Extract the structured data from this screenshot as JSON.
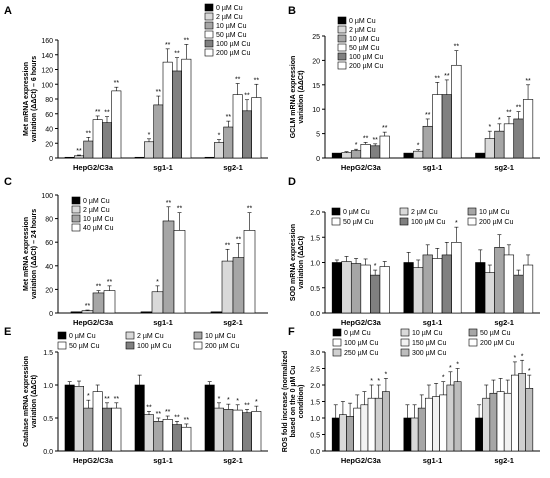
{
  "figure": {
    "panels_order": [
      "A",
      "B",
      "C",
      "D",
      "E",
      "F"
    ]
  },
  "series_colors": {
    "0": "#000000",
    "2": "#d9d9d9",
    "10": "#a6a6a6",
    "50": "#ffffff",
    "100": "#808080",
    "150": "#f2f2f2",
    "200": "#ffffff",
    "250": "#d0d0d0",
    "300": "#bdbdbd",
    "40": "#ffffff"
  },
  "chart_data": [
    {
      "panel": "A",
      "type": "bar",
      "ylabel_lines": [
        "Met mRNA expression",
        "variation (ΔΔCt) – 6 hours"
      ],
      "ylim": [
        0,
        160
      ],
      "yticks": [
        0,
        20,
        40,
        60,
        80,
        100,
        120,
        140,
        160
      ],
      "ytick_decimals": 0,
      "categories": [
        "HepG2/C3a",
        "sg1-1",
        "sg2-1"
      ],
      "legend_layout": "column",
      "series": [
        {
          "name": "0 µM Cu",
          "color": "#000000",
          "values": [
            1,
            1,
            1
          ],
          "errors": [
            0,
            0,
            0
          ],
          "stars": [
            "",
            "",
            ""
          ]
        },
        {
          "name": "2 µM Cu",
          "color": "#d9d9d9",
          "values": [
            3,
            22,
            21
          ],
          "errors": [
            1,
            4,
            4
          ],
          "stars": [
            "**",
            "*",
            "*"
          ]
        },
        {
          "name": "10 µM Cu",
          "color": "#a6a6a6",
          "values": [
            23,
            72,
            42
          ],
          "errors": [
            5,
            12,
            8
          ],
          "stars": [
            "**",
            "**",
            "**"
          ]
        },
        {
          "name": "50 µM Cu",
          "color": "#ffffff",
          "values": [
            52,
            130,
            86
          ],
          "errors": [
            5,
            18,
            15
          ],
          "stars": [
            "**",
            "**",
            "**"
          ]
        },
        {
          "name": "100 µM Cu",
          "color": "#808080",
          "values": [
            48,
            118,
            64
          ],
          "errors": [
            8,
            18,
            15
          ],
          "stars": [
            "**",
            "**",
            "**"
          ]
        },
        {
          "name": "200 µM Cu",
          "color": "#ffffff",
          "values": [
            91,
            134,
            82
          ],
          "errors": [
            5,
            20,
            18
          ],
          "stars": [
            "**",
            "**",
            "**"
          ]
        }
      ]
    },
    {
      "panel": "B",
      "type": "bar",
      "ylabel_lines": [
        "GCLM mRNA expression",
        "variation (ΔΔCt)"
      ],
      "ylim": [
        0,
        25
      ],
      "yticks": [
        0,
        5,
        10,
        15,
        20,
        25
      ],
      "ytick_decimals": 0,
      "categories": [
        "HepG2/C3a",
        "sg1-1",
        "sg2-1"
      ],
      "legend_layout": "column",
      "series": [
        {
          "name": "0 µM Cu",
          "color": "#000000",
          "values": [
            1,
            1,
            1
          ],
          "errors": [
            0,
            0,
            0
          ],
          "stars": [
            "",
            "",
            ""
          ]
        },
        {
          "name": "2 µM Cu",
          "color": "#d9d9d9",
          "values": [
            1.1,
            1.4,
            4
          ],
          "errors": [
            0.2,
            0.3,
            1.5
          ],
          "stars": [
            "",
            "*",
            "*"
          ]
        },
        {
          "name": "10 µM Cu",
          "color": "#a6a6a6",
          "values": [
            1.5,
            6.5,
            5.5
          ],
          "errors": [
            0.3,
            1.5,
            1.5
          ],
          "stars": [
            "*",
            "**",
            "*"
          ]
        },
        {
          "name": "50 µM Cu",
          "color": "#ffffff",
          "values": [
            2.8,
            13,
            7
          ],
          "errors": [
            0.4,
            2.5,
            1.5
          ],
          "stars": [
            "**",
            "**",
            "**"
          ]
        },
        {
          "name": "100 µM Cu",
          "color": "#808080",
          "values": [
            2.5,
            13,
            8
          ],
          "errors": [
            0.4,
            3,
            1.5
          ],
          "stars": [
            "**",
            "**",
            "**"
          ]
        },
        {
          "name": "200 µM Cu",
          "color": "#ffffff",
          "values": [
            4.5,
            19,
            12
          ],
          "errors": [
            0.8,
            3,
            3
          ],
          "stars": [
            "**",
            "**",
            "**"
          ]
        }
      ]
    },
    {
      "panel": "C",
      "type": "bar",
      "ylabel_lines": [
        "Met mRNA expression",
        "variation (ΔΔCt) – 24 hours"
      ],
      "ylim": [
        0,
        100
      ],
      "yticks": [
        0,
        20,
        40,
        60,
        80,
        100
      ],
      "ytick_decimals": 0,
      "categories": [
        "HepG2/C3a",
        "sg1-1",
        "sg2-1"
      ],
      "legend_layout": "column",
      "series": [
        {
          "name": "0 µM Cu",
          "color": "#000000",
          "values": [
            1,
            1,
            1
          ],
          "errors": [
            0,
            0,
            0
          ],
          "stars": [
            "",
            "",
            ""
          ]
        },
        {
          "name": "2 µM Cu",
          "color": "#d9d9d9",
          "values": [
            2,
            18,
            44
          ],
          "errors": [
            0.5,
            5,
            10
          ],
          "stars": [
            "**",
            "*",
            "**"
          ]
        },
        {
          "name": "10 µM Cu",
          "color": "#a6a6a6",
          "values": [
            17,
            78,
            47
          ],
          "errors": [
            2,
            12,
            12
          ],
          "stars": [
            "**",
            "**",
            "**"
          ]
        },
        {
          "name": "40 µM Cu",
          "color": "#ffffff",
          "values": [
            19,
            70,
            70
          ],
          "errors": [
            4,
            15,
            15
          ],
          "stars": [
            "**",
            "**",
            "**"
          ]
        }
      ]
    },
    {
      "panel": "D",
      "type": "bar",
      "ylabel_lines": [
        "SOD mRNA expression",
        "variation (ΔΔCt)"
      ],
      "ylim": [
        0,
        2
      ],
      "yticks": [
        0,
        0.5,
        1,
        1.5,
        2
      ],
      "ytick_decimals": 1,
      "categories": [
        "HepG2/C3a",
        "sg1-1",
        "sg2-1"
      ],
      "legend_layout": "grid3",
      "series": [
        {
          "name": "0 µM Cu",
          "color": "#000000",
          "values": [
            1,
            1,
            1
          ],
          "errors": [
            0.05,
            0.2,
            0.25
          ],
          "stars": [
            "",
            "",
            ""
          ]
        },
        {
          "name": "2 µM Cu",
          "color": "#d9d9d9",
          "values": [
            1.02,
            0.9,
            0.8
          ],
          "errors": [
            0.1,
            0.15,
            0.15
          ],
          "stars": [
            "",
            "",
            ""
          ]
        },
        {
          "name": "10 µM Cu",
          "color": "#a6a6a6",
          "values": [
            0.98,
            1.15,
            1.3
          ],
          "errors": [
            0.1,
            0.2,
            0.25
          ],
          "stars": [
            "",
            "",
            ""
          ]
        },
        {
          "name": "50 µM Cu",
          "color": "#ffffff",
          "values": [
            0.95,
            1.08,
            1.15
          ],
          "errors": [
            0.12,
            0.2,
            0.2
          ],
          "stars": [
            "",
            "",
            ""
          ]
        },
        {
          "name": "100 µM Cu",
          "color": "#808080",
          "values": [
            0.75,
            1.15,
            0.75
          ],
          "errors": [
            0.1,
            0.25,
            0.1
          ],
          "stars": [
            "*",
            "",
            ""
          ]
        },
        {
          "name": "200 µM Cu",
          "color": "#ffffff",
          "values": [
            0.92,
            1.4,
            0.95
          ],
          "errors": [
            0.1,
            0.3,
            0.2
          ],
          "stars": [
            "",
            "*",
            ""
          ]
        }
      ]
    },
    {
      "panel": "E",
      "type": "bar",
      "ylabel_lines": [
        "Catalase mRNA expression",
        "variation (ΔΔCt)"
      ],
      "ylim": [
        0,
        1.5
      ],
      "yticks": [
        0,
        0.5,
        1,
        1.5
      ],
      "ytick_decimals": 1,
      "categories": [
        "HepG2/C3a",
        "sg1-1",
        "sg2-1"
      ],
      "legend_layout": "grid3",
      "series": [
        {
          "name": "0 µM Cu",
          "color": "#000000",
          "values": [
            1,
            1,
            1
          ],
          "errors": [
            0.05,
            0.15,
            0.05
          ],
          "stars": [
            "",
            "",
            ""
          ]
        },
        {
          "name": "2 µM Cu",
          "color": "#d9d9d9",
          "values": [
            0.98,
            0.55,
            0.65
          ],
          "errors": [
            0.08,
            0.05,
            0.08
          ],
          "stars": [
            "",
            "**",
            "*"
          ]
        },
        {
          "name": "10 µM Cu",
          "color": "#a6a6a6",
          "values": [
            0.65,
            0.45,
            0.63
          ],
          "errors": [
            0.12,
            0.05,
            0.08
          ],
          "stars": [
            "*",
            "**",
            "*"
          ]
        },
        {
          "name": "50 µM Cu",
          "color": "#ffffff",
          "values": [
            0.9,
            0.48,
            0.62
          ],
          "errors": [
            0.1,
            0.05,
            0.08
          ],
          "stars": [
            "",
            "**",
            "*"
          ]
        },
        {
          "name": "100 µM Cu",
          "color": "#808080",
          "values": [
            0.65,
            0.4,
            0.58
          ],
          "errors": [
            0.08,
            0.05,
            0.05
          ],
          "stars": [
            "**",
            "**",
            "**"
          ]
        },
        {
          "name": "200 µM Cu",
          "color": "#ffffff",
          "values": [
            0.65,
            0.36,
            0.6
          ],
          "errors": [
            0.08,
            0.05,
            0.08
          ],
          "stars": [
            "**",
            "**",
            "*"
          ]
        }
      ]
    },
    {
      "panel": "F",
      "type": "bar",
      "ylabel_lines": [
        "ROS fold increase (normalized",
        "based on the 0 µM Cu",
        "condition)"
      ],
      "ylim": [
        0,
        3
      ],
      "yticks": [
        0,
        0.5,
        1,
        1.5,
        2,
        2.5,
        3
      ],
      "ytick_decimals": 1,
      "categories": [
        "HepG2/C3a",
        "sg1-1",
        "sg2-1"
      ],
      "legend_layout": "grid3",
      "series": [
        {
          "name": "0 µM Cu",
          "color": "#000000",
          "values": [
            1,
            1,
            1
          ],
          "errors": [
            0.4,
            0.4,
            0.4
          ],
          "stars": [
            "",
            "",
            ""
          ]
        },
        {
          "name": "10 µM Cu",
          "color": "#d9d9d9",
          "values": [
            1.1,
            1.0,
            1.6
          ],
          "errors": [
            0.4,
            0.4,
            0.4
          ],
          "stars": [
            "",
            "",
            ""
          ]
        },
        {
          "name": "50 µM Cu",
          "color": "#a6a6a6",
          "values": [
            1.05,
            1.3,
            1.75
          ],
          "errors": [
            0.4,
            0.4,
            0.4
          ],
          "stars": [
            "",
            "",
            ""
          ]
        },
        {
          "name": "100 µM Cu",
          "color": "#ffffff",
          "values": [
            1.3,
            1.6,
            1.8
          ],
          "errors": [
            0.4,
            0.4,
            0.4
          ],
          "stars": [
            "",
            "",
            ""
          ]
        },
        {
          "name": "150 µM Cu",
          "color": "#f2f2f2",
          "values": [
            1.4,
            1.65,
            1.75
          ],
          "errors": [
            0.4,
            0.4,
            0.4
          ],
          "stars": [
            "",
            "",
            ""
          ]
        },
        {
          "name": "200 µM Cu",
          "color": "#ffffff",
          "values": [
            1.6,
            1.7,
            2.3
          ],
          "errors": [
            0.4,
            0.4,
            0.4
          ],
          "stars": [
            "*",
            "*",
            "*"
          ]
        },
        {
          "name": "250 µM Cu",
          "color": "#d0d0d0",
          "values": [
            1.6,
            2.0,
            2.35
          ],
          "errors": [
            0.4,
            0.4,
            0.4
          ],
          "stars": [
            "*",
            "*",
            "*"
          ]
        },
        {
          "name": "300 µM Cu",
          "color": "#bdbdbd",
          "values": [
            1.8,
            2.1,
            1.9
          ],
          "errors": [
            0.4,
            0.4,
            0.4
          ],
          "stars": [
            "*",
            "*",
            "*"
          ]
        }
      ]
    }
  ]
}
